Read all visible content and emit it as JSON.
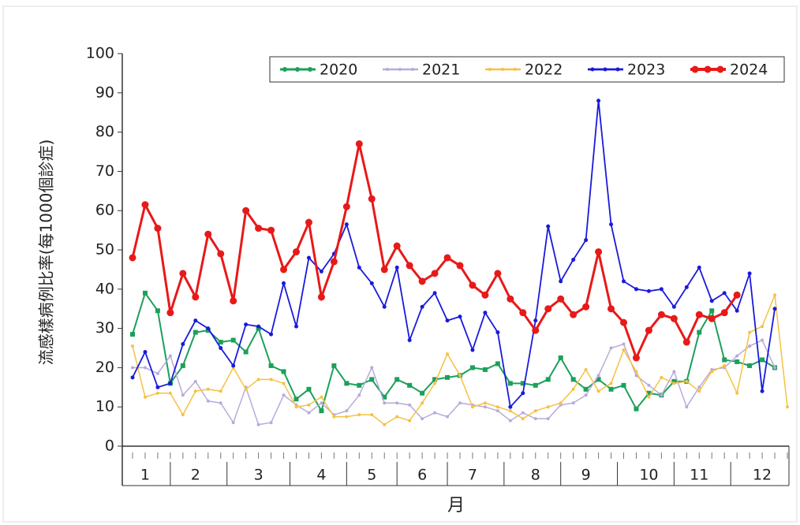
{
  "chart_data": {
    "type": "line",
    "y_label": "流感樣病例比率(每1000個診症)",
    "x_label": "月",
    "categories": [
      null,
      "1",
      null,
      null,
      null,
      "2",
      null,
      null,
      null,
      null,
      "3",
      null,
      null,
      null,
      null,
      "4",
      null,
      null,
      null,
      "5",
      null,
      null,
      null,
      "6",
      null,
      null,
      null,
      "7",
      null,
      null,
      null,
      null,
      "8",
      null,
      null,
      null,
      "9",
      null,
      null,
      null,
      null,
      "10",
      null,
      null,
      null,
      "11",
      null,
      null,
      null,
      null,
      "12",
      null,
      null
    ],
    "ylim": [
      0,
      100
    ],
    "yticks": [
      0,
      10,
      20,
      30,
      40,
      50,
      60,
      70,
      80,
      90,
      100
    ],
    "series": [
      {
        "name": "2020",
        "color": "#1ca05a",
        "values": [
          28.5,
          39,
          34.5,
          16,
          20.5,
          29,
          29.5,
          26.5,
          27,
          24,
          30,
          20.5,
          19,
          12,
          14.5,
          9,
          20.5,
          16,
          15.5,
          17,
          12.5,
          17,
          15.5,
          13.5,
          17,
          17.5,
          18,
          20,
          19.5,
          21,
          16,
          16,
          15.5,
          17,
          22.5,
          17,
          14.5,
          17,
          14.5,
          15.5,
          9.5,
          13.5,
          13,
          16.5,
          16.5,
          29,
          34.5,
          22,
          21.5,
          20.5,
          22,
          20,
          null
        ]
      },
      {
        "name": "2021",
        "color": "#b9aadb",
        "values": [
          20,
          20,
          18.5,
          23,
          13,
          16.5,
          11.5,
          11,
          6,
          15,
          5.5,
          6,
          13,
          10.5,
          8.5,
          11,
          8,
          9,
          13,
          20,
          11,
          11,
          10.5,
          7,
          8.5,
          7.5,
          11,
          10.5,
          10,
          9,
          6.5,
          8.5,
          7,
          7,
          10.5,
          11,
          13,
          18,
          25,
          26,
          18,
          15.5,
          13,
          19,
          10,
          15,
          19.5,
          20,
          23,
          25.5,
          27,
          20,
          null
        ]
      },
      {
        "name": "2022",
        "color": "#f5c242",
        "values": [
          25.5,
          12.5,
          13.5,
          13.5,
          8,
          14,
          14.5,
          14,
          20,
          14.5,
          17,
          17,
          16,
          10,
          10.5,
          12.5,
          7.5,
          7.5,
          8,
          8,
          5.5,
          7.5,
          6.5,
          11,
          16,
          23.5,
          18,
          10,
          11,
          10,
          9,
          7,
          9,
          10,
          11,
          14.5,
          19.5,
          14,
          16,
          24.5,
          19,
          12.5,
          17.5,
          16,
          16.5,
          14,
          19,
          20.5,
          13.5,
          29,
          30.5,
          38.5,
          10
        ]
      },
      {
        "name": "2023",
        "color": "#1a1adc",
        "values": [
          17.5,
          24,
          15,
          16,
          26,
          32,
          30,
          25,
          20.5,
          31,
          30.5,
          28.5,
          41.5,
          30.5,
          48,
          44.5,
          49,
          56.5,
          45.5,
          41.5,
          35.5,
          45.5,
          27,
          35.5,
          39,
          32,
          33,
          24.5,
          34,
          29,
          10,
          13.5,
          32,
          56,
          42,
          47.5,
          52.5,
          88,
          56.5,
          42,
          40,
          39.5,
          40,
          35.5,
          40.5,
          45.5,
          37,
          39,
          34.5,
          44,
          14,
          35,
          null
        ]
      },
      {
        "name": "2024",
        "color": "#e81919",
        "values": [
          48,
          61.5,
          55.5,
          34,
          44,
          38,
          54,
          49,
          37,
          60,
          55.5,
          55,
          45,
          49.5,
          57,
          38,
          47,
          61,
          77,
          63,
          45,
          51,
          46,
          42,
          44,
          48,
          46,
          41,
          38.5,
          44,
          37.5,
          34,
          29.5,
          35,
          37.5,
          33.5,
          35.5,
          49.5,
          35,
          31.5,
          22.5,
          29.5,
          33.5,
          32.5,
          26.5,
          33.5,
          32.5,
          34,
          38.5,
          null,
          null,
          null,
          null
        ]
      }
    ]
  }
}
